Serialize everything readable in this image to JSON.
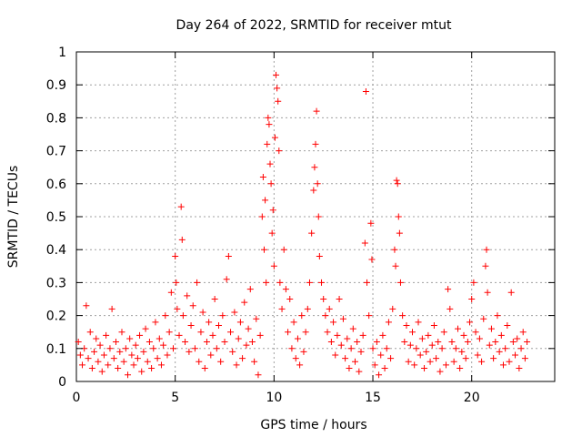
{
  "chart_data": {
    "type": "scatter",
    "title": "Day 264 of 2022, SRMTID for receiver mtut",
    "xlabel": "GPS time / hours",
    "ylabel": "SRMTID / TECUs",
    "xlim": [
      0,
      24.2
    ],
    "ylim": [
      0,
      1
    ],
    "x_ticks": [
      0,
      5,
      10,
      15,
      20
    ],
    "x_tick_labels": [
      "0",
      "5",
      "10",
      "15",
      "20"
    ],
    "y_ticks": [
      0,
      0.1,
      0.2,
      0.3,
      0.4,
      0.5,
      0.6,
      0.7,
      0.8,
      0.9,
      1
    ],
    "y_tick_labels": [
      "0",
      "0.1",
      "0.2",
      "0.3",
      "0.4",
      "0.5",
      "0.6",
      "0.7",
      "0.8",
      "0.9",
      "1"
    ],
    "grid": true,
    "marker": "+",
    "color": "#ff0000",
    "series": [
      {
        "name": "SRMTID",
        "points": [
          [
            0.1,
            0.12
          ],
          [
            0.2,
            0.08
          ],
          [
            0.3,
            0.05
          ],
          [
            0.4,
            0.1
          ],
          [
            0.5,
            0.23
          ],
          [
            0.6,
            0.07
          ],
          [
            0.7,
            0.15
          ],
          [
            0.8,
            0.04
          ],
          [
            0.9,
            0.09
          ],
          [
            1.0,
            0.13
          ],
          [
            1.1,
            0.06
          ],
          [
            1.2,
            0.11
          ],
          [
            1.3,
            0.03
          ],
          [
            1.4,
            0.08
          ],
          [
            1.5,
            0.14
          ],
          [
            1.6,
            0.05
          ],
          [
            1.7,
            0.1
          ],
          [
            1.8,
            0.22
          ],
          [
            1.9,
            0.07
          ],
          [
            2.0,
            0.12
          ],
          [
            2.1,
            0.04
          ],
          [
            2.2,
            0.09
          ],
          [
            2.3,
            0.15
          ],
          [
            2.4,
            0.06
          ],
          [
            2.5,
            0.1
          ],
          [
            2.6,
            0.02
          ],
          [
            2.7,
            0.13
          ],
          [
            2.8,
            0.08
          ],
          [
            2.9,
            0.05
          ],
          [
            3.0,
            0.11
          ],
          [
            3.1,
            0.07
          ],
          [
            3.2,
            0.14
          ],
          [
            3.3,
            0.03
          ],
          [
            3.4,
            0.09
          ],
          [
            3.5,
            0.16
          ],
          [
            3.6,
            0.06
          ],
          [
            3.7,
            0.12
          ],
          [
            3.8,
            0.04
          ],
          [
            3.9,
            0.1
          ],
          [
            4.0,
            0.18
          ],
          [
            4.1,
            0.07
          ],
          [
            4.2,
            0.13
          ],
          [
            4.3,
            0.05
          ],
          [
            4.4,
            0.11
          ],
          [
            4.5,
            0.2
          ],
          [
            4.6,
            0.08
          ],
          [
            4.7,
            0.15
          ],
          [
            4.8,
            0.27
          ],
          [
            4.9,
            0.1
          ],
          [
            5.0,
            0.38
          ],
          [
            5.05,
            0.3
          ],
          [
            5.1,
            0.22
          ],
          [
            5.2,
            0.14
          ],
          [
            5.3,
            0.53
          ],
          [
            5.35,
            0.43
          ],
          [
            5.4,
            0.2
          ],
          [
            5.5,
            0.12
          ],
          [
            5.6,
            0.26
          ],
          [
            5.7,
            0.09
          ],
          [
            5.8,
            0.17
          ],
          [
            5.9,
            0.23
          ],
          [
            6.0,
            0.1
          ],
          [
            6.1,
            0.3
          ],
          [
            6.2,
            0.06
          ],
          [
            6.3,
            0.15
          ],
          [
            6.4,
            0.21
          ],
          [
            6.5,
            0.04
          ],
          [
            6.6,
            0.12
          ],
          [
            6.7,
            0.18
          ],
          [
            6.8,
            0.08
          ],
          [
            6.9,
            0.14
          ],
          [
            7.0,
            0.25
          ],
          [
            7.1,
            0.1
          ],
          [
            7.2,
            0.17
          ],
          [
            7.3,
            0.06
          ],
          [
            7.4,
            0.2
          ],
          [
            7.5,
            0.12
          ],
          [
            7.6,
            0.31
          ],
          [
            7.7,
            0.38
          ],
          [
            7.8,
            0.15
          ],
          [
            7.9,
            0.09
          ],
          [
            8.0,
            0.21
          ],
          [
            8.1,
            0.05
          ],
          [
            8.2,
            0.13
          ],
          [
            8.3,
            0.18
          ],
          [
            8.4,
            0.07
          ],
          [
            8.5,
            0.24
          ],
          [
            8.6,
            0.11
          ],
          [
            8.7,
            0.16
          ],
          [
            8.8,
            0.28
          ],
          [
            8.9,
            0.12
          ],
          [
            9.0,
            0.06
          ],
          [
            9.1,
            0.19
          ],
          [
            9.2,
            0.02
          ],
          [
            9.3,
            0.14
          ],
          [
            9.4,
            0.5
          ],
          [
            9.45,
            0.62
          ],
          [
            9.5,
            0.4
          ],
          [
            9.55,
            0.55
          ],
          [
            9.6,
            0.3
          ],
          [
            9.65,
            0.72
          ],
          [
            9.7,
            0.8
          ],
          [
            9.75,
            0.78
          ],
          [
            9.8,
            0.66
          ],
          [
            9.85,
            0.6
          ],
          [
            9.9,
            0.45
          ],
          [
            9.95,
            0.52
          ],
          [
            10.0,
            0.35
          ],
          [
            10.05,
            0.74
          ],
          [
            10.1,
            0.93
          ],
          [
            10.15,
            0.89
          ],
          [
            10.2,
            0.85
          ],
          [
            10.25,
            0.7
          ],
          [
            10.3,
            0.3
          ],
          [
            10.4,
            0.22
          ],
          [
            10.5,
            0.4
          ],
          [
            10.6,
            0.28
          ],
          [
            10.7,
            0.15
          ],
          [
            10.8,
            0.25
          ],
          [
            10.9,
            0.1
          ],
          [
            11.0,
            0.18
          ],
          [
            11.1,
            0.07
          ],
          [
            11.2,
            0.13
          ],
          [
            11.3,
            0.05
          ],
          [
            11.4,
            0.2
          ],
          [
            11.5,
            0.09
          ],
          [
            11.6,
            0.15
          ],
          [
            11.7,
            0.22
          ],
          [
            11.8,
            0.3
          ],
          [
            11.9,
            0.45
          ],
          [
            12.0,
            0.58
          ],
          [
            12.05,
            0.65
          ],
          [
            12.1,
            0.72
          ],
          [
            12.15,
            0.82
          ],
          [
            12.2,
            0.6
          ],
          [
            12.25,
            0.5
          ],
          [
            12.3,
            0.38
          ],
          [
            12.4,
            0.3
          ],
          [
            12.5,
            0.25
          ],
          [
            12.6,
            0.2
          ],
          [
            12.7,
            0.15
          ],
          [
            12.8,
            0.22
          ],
          [
            12.9,
            0.12
          ],
          [
            13.0,
            0.18
          ],
          [
            13.1,
            0.08
          ],
          [
            13.2,
            0.14
          ],
          [
            13.3,
            0.25
          ],
          [
            13.4,
            0.11
          ],
          [
            13.5,
            0.19
          ],
          [
            13.6,
            0.07
          ],
          [
            13.7,
            0.13
          ],
          [
            13.8,
            0.04
          ],
          [
            13.9,
            0.1
          ],
          [
            14.0,
            0.16
          ],
          [
            14.1,
            0.06
          ],
          [
            14.2,
            0.12
          ],
          [
            14.3,
            0.03
          ],
          [
            14.4,
            0.09
          ],
          [
            14.5,
            0.14
          ],
          [
            14.6,
            0.42
          ],
          [
            14.65,
            0.88
          ],
          [
            14.7,
            0.3
          ],
          [
            14.8,
            0.2
          ],
          [
            14.9,
            0.48
          ],
          [
            14.95,
            0.37
          ],
          [
            15.0,
            0.1
          ],
          [
            15.1,
            0.05
          ],
          [
            15.2,
            0.12
          ],
          [
            15.3,
            0.02
          ],
          [
            15.4,
            0.08
          ],
          [
            15.5,
            0.14
          ],
          [
            15.6,
            0.04
          ],
          [
            15.7,
            0.1
          ],
          [
            15.8,
            0.18
          ],
          [
            15.9,
            0.07
          ],
          [
            16.0,
            0.22
          ],
          [
            16.1,
            0.4
          ],
          [
            16.15,
            0.35
          ],
          [
            16.2,
            0.61
          ],
          [
            16.25,
            0.6
          ],
          [
            16.3,
            0.5
          ],
          [
            16.35,
            0.45
          ],
          [
            16.4,
            0.3
          ],
          [
            16.5,
            0.2
          ],
          [
            16.6,
            0.12
          ],
          [
            16.7,
            0.17
          ],
          [
            16.8,
            0.06
          ],
          [
            16.9,
            0.11
          ],
          [
            17.0,
            0.15
          ],
          [
            17.1,
            0.05
          ],
          [
            17.2,
            0.1
          ],
          [
            17.3,
            0.18
          ],
          [
            17.4,
            0.08
          ],
          [
            17.5,
            0.13
          ],
          [
            17.6,
            0.04
          ],
          [
            17.7,
            0.09
          ],
          [
            17.8,
            0.14
          ],
          [
            17.9,
            0.06
          ],
          [
            18.0,
            0.11
          ],
          [
            18.1,
            0.17
          ],
          [
            18.2,
            0.07
          ],
          [
            18.3,
            0.12
          ],
          [
            18.4,
            0.03
          ],
          [
            18.5,
            0.1
          ],
          [
            18.6,
            0.15
          ],
          [
            18.7,
            0.05
          ],
          [
            18.8,
            0.28
          ],
          [
            18.9,
            0.22
          ],
          [
            19.0,
            0.12
          ],
          [
            19.1,
            0.06
          ],
          [
            19.2,
            0.1
          ],
          [
            19.3,
            0.16
          ],
          [
            19.4,
            0.04
          ],
          [
            19.5,
            0.09
          ],
          [
            19.6,
            0.14
          ],
          [
            19.7,
            0.07
          ],
          [
            19.8,
            0.12
          ],
          [
            19.9,
            0.18
          ],
          [
            20.0,
            0.25
          ],
          [
            20.1,
            0.3
          ],
          [
            20.2,
            0.15
          ],
          [
            20.3,
            0.08
          ],
          [
            20.4,
            0.13
          ],
          [
            20.5,
            0.06
          ],
          [
            20.6,
            0.19
          ],
          [
            20.7,
            0.35
          ],
          [
            20.75,
            0.4
          ],
          [
            20.8,
            0.27
          ],
          [
            20.9,
            0.11
          ],
          [
            21.0,
            0.16
          ],
          [
            21.1,
            0.07
          ],
          [
            21.2,
            0.12
          ],
          [
            21.3,
            0.2
          ],
          [
            21.4,
            0.09
          ],
          [
            21.5,
            0.14
          ],
          [
            21.6,
            0.05
          ],
          [
            21.7,
            0.1
          ],
          [
            21.8,
            0.17
          ],
          [
            21.9,
            0.06
          ],
          [
            22.0,
            0.27
          ],
          [
            22.1,
            0.12
          ],
          [
            22.2,
            0.08
          ],
          [
            22.3,
            0.13
          ],
          [
            22.4,
            0.04
          ],
          [
            22.5,
            0.1
          ],
          [
            22.6,
            0.15
          ],
          [
            22.7,
            0.07
          ],
          [
            22.8,
            0.12
          ]
        ]
      }
    ]
  }
}
